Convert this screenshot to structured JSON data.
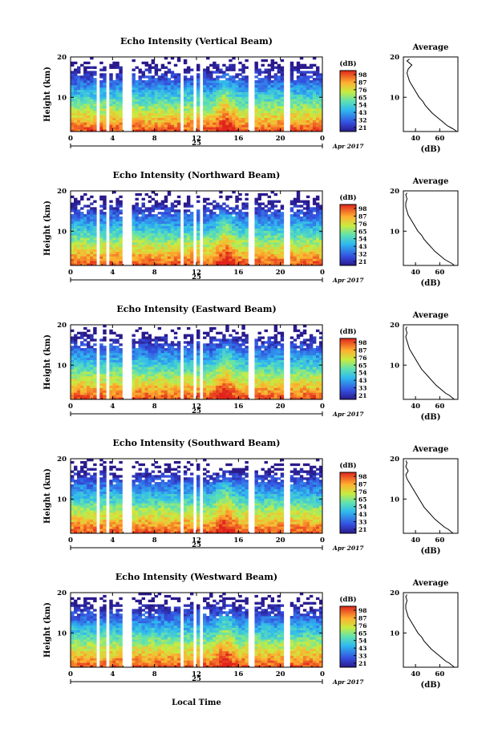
{
  "figure": {
    "xlabel": "Local Time",
    "average_title": "Average",
    "average_xlabel": "(dB)",
    "colorbar_unit": "(dB)",
    "y_label": "Height (km)",
    "date_label": "Apr 2017",
    "day_label": "25"
  },
  "chart_data": [
    {
      "type": "heatmap",
      "title": "Echo Intensity (Vertical Beam)",
      "xlabel": "",
      "ylabel": "Height (km)",
      "x_ticks": [
        "0",
        "4",
        "8",
        "12",
        "16",
        "20",
        "0"
      ],
      "y_ticks": [
        "20",
        "10"
      ],
      "xlim": [
        0,
        24
      ],
      "ylim": [
        1.5,
        20
      ],
      "colorbar": {
        "ticks": [
          "98",
          "87",
          "76",
          "65",
          "54",
          "43",
          "32",
          "21"
        ],
        "range": [
          21,
          98
        ]
      },
      "data_gaps_hours": [
        [
          2.6,
          2.9
        ],
        [
          3.3,
          3.6
        ],
        [
          4.9,
          5.9
        ],
        [
          10.5,
          10.9
        ],
        [
          11.6,
          12.0
        ],
        [
          12.4,
          12.7
        ],
        [
          17.0,
          17.5
        ],
        [
          20.2,
          20.5
        ],
        [
          20.7,
          21.0
        ]
      ],
      "enhanced_echo_hours": [
        13.5,
        16.0
      ],
      "average_profile": {
        "title": "Average",
        "xlabel": "(dB)",
        "x_ticks": [
          "40",
          "60"
        ],
        "y_ticks": [
          "20",
          "10"
        ],
        "xlim": [
          30,
          75
        ],
        "ylim": [
          1.5,
          20
        ],
        "height_km": [
          1.5,
          2,
          2.5,
          3,
          4,
          5,
          6,
          7,
          8,
          9,
          10,
          11,
          12,
          13,
          14,
          15,
          16,
          17,
          18,
          19,
          19.5
        ],
        "intensity_db": [
          74,
          72,
          69,
          66,
          62,
          58,
          54,
          51,
          48,
          46,
          43,
          41,
          39,
          37,
          35,
          34,
          33,
          34,
          37,
          33,
          35
        ]
      }
    },
    {
      "type": "heatmap",
      "title": "Echo Intensity (Northward Beam)",
      "xlabel": "",
      "ylabel": "Height (km)",
      "x_ticks": [
        "0",
        "4",
        "8",
        "12",
        "16",
        "20",
        "0"
      ],
      "y_ticks": [
        "20",
        "10"
      ],
      "xlim": [
        0,
        24
      ],
      "ylim": [
        1.5,
        20
      ],
      "colorbar": {
        "ticks": [
          "98",
          "87",
          "76",
          "65",
          "54",
          "43",
          "32",
          "21"
        ],
        "range": [
          21,
          98
        ]
      },
      "data_gaps_hours": [
        [
          2.6,
          2.9
        ],
        [
          3.3,
          3.6
        ],
        [
          4.9,
          5.9
        ],
        [
          10.5,
          10.9
        ],
        [
          11.6,
          12.0
        ],
        [
          12.4,
          12.7
        ],
        [
          17.0,
          17.5
        ],
        [
          20.2,
          20.5
        ],
        [
          20.7,
          21.0
        ]
      ],
      "enhanced_echo_hours": [
        13.5,
        16.0
      ],
      "average_profile": {
        "title": "Average",
        "xlabel": "(dB)",
        "x_ticks": [
          "40",
          "60"
        ],
        "y_ticks": [
          "20",
          "10"
        ],
        "xlim": [
          30,
          75
        ],
        "ylim": [
          1.5,
          20
        ],
        "height_km": [
          1.5,
          2,
          2.5,
          3,
          4,
          5,
          6,
          7,
          8,
          9,
          10,
          11,
          12,
          13,
          14,
          15,
          16,
          17,
          18,
          19,
          19.5
        ],
        "intensity_db": [
          72,
          70,
          67,
          64,
          60,
          56,
          53,
          50,
          47,
          45,
          42,
          40,
          38,
          36,
          34,
          33,
          32,
          32,
          33,
          32,
          33
        ]
      }
    },
    {
      "type": "heatmap",
      "title": "Echo Intensity (Eastward Beam)",
      "xlabel": "",
      "ylabel": "Height (km)",
      "x_ticks": [
        "0",
        "4",
        "8",
        "12",
        "16",
        "20",
        "0"
      ],
      "y_ticks": [
        "20",
        "10"
      ],
      "xlim": [
        0,
        24
      ],
      "ylim": [
        1.5,
        20
      ],
      "colorbar": {
        "ticks": [
          "98",
          "87",
          "76",
          "65",
          "54",
          "43",
          "33",
          "21"
        ],
        "range": [
          21,
          98
        ]
      },
      "data_gaps_hours": [
        [
          2.6,
          2.9
        ],
        [
          3.3,
          3.6
        ],
        [
          4.9,
          5.9
        ],
        [
          10.5,
          10.9
        ],
        [
          11.6,
          12.0
        ],
        [
          12.4,
          12.7
        ],
        [
          17.0,
          17.5
        ],
        [
          20.2,
          20.5
        ],
        [
          20.7,
          21.0
        ]
      ],
      "enhanced_echo_hours": [
        13.5,
        16.0
      ],
      "average_profile": {
        "title": "Average",
        "xlabel": "(dB)",
        "x_ticks": [
          "40",
          "60"
        ],
        "y_ticks": [
          "20",
          "10"
        ],
        "xlim": [
          30,
          75
        ],
        "ylim": [
          1.5,
          20
        ],
        "height_km": [
          1.5,
          2,
          2.5,
          3,
          4,
          5,
          6,
          7,
          8,
          9,
          10,
          11,
          12,
          13,
          14,
          15,
          16,
          17,
          18,
          19,
          19.5
        ],
        "intensity_db": [
          72,
          70,
          68,
          65,
          61,
          57,
          54,
          51,
          48,
          45,
          43,
          41,
          39,
          37,
          35,
          34,
          33,
          32,
          33,
          32,
          33
        ]
      }
    },
    {
      "type": "heatmap",
      "title": "Echo Intensity (Southward Beam)",
      "xlabel": "",
      "ylabel": "Height (km)",
      "x_ticks": [
        "0",
        "4",
        "8",
        "12",
        "16",
        "20",
        "0"
      ],
      "y_ticks": [
        "20",
        "10"
      ],
      "xlim": [
        0,
        24
      ],
      "ylim": [
        1.5,
        20
      ],
      "colorbar": {
        "ticks": [
          "98",
          "87",
          "76",
          "65",
          "54",
          "43",
          "33",
          "21"
        ],
        "range": [
          21,
          98
        ]
      },
      "data_gaps_hours": [
        [
          2.6,
          2.9
        ],
        [
          3.3,
          3.6
        ],
        [
          4.9,
          5.9
        ],
        [
          10.5,
          10.9
        ],
        [
          11.6,
          12.0
        ],
        [
          12.4,
          12.7
        ],
        [
          17.0,
          17.5
        ],
        [
          20.2,
          20.5
        ],
        [
          20.7,
          21.0
        ]
      ],
      "enhanced_echo_hours": [
        13.5,
        16.0
      ],
      "average_profile": {
        "title": "Average",
        "xlabel": "(dB)",
        "x_ticks": [
          "40",
          "60"
        ],
        "y_ticks": [
          "20",
          "10"
        ],
        "xlim": [
          30,
          75
        ],
        "ylim": [
          1.5,
          20
        ],
        "height_km": [
          1.5,
          2,
          2.5,
          3,
          4,
          5,
          6,
          7,
          8,
          9,
          10,
          11,
          12,
          13,
          14,
          15,
          16,
          17,
          18,
          19,
          19.5
        ],
        "intensity_db": [
          71,
          69,
          67,
          64,
          60,
          56,
          53,
          50,
          47,
          45,
          43,
          41,
          39,
          37,
          35,
          33,
          32,
          34,
          32,
          33,
          32
        ]
      }
    },
    {
      "type": "heatmap",
      "title": "Echo Intensity (Westward Beam)",
      "xlabel": "Local Time",
      "ylabel": "Height (km)",
      "x_ticks": [
        "0",
        "4",
        "8",
        "12",
        "16",
        "20",
        "0"
      ],
      "y_ticks": [
        "20",
        "10"
      ],
      "xlim": [
        0,
        24
      ],
      "ylim": [
        1.5,
        20
      ],
      "colorbar": {
        "ticks": [
          "98",
          "87",
          "76",
          "65",
          "54",
          "43",
          "33",
          "21"
        ],
        "range": [
          21,
          98
        ]
      },
      "data_gaps_hours": [
        [
          2.6,
          2.9
        ],
        [
          3.3,
          3.6
        ],
        [
          4.9,
          5.9
        ],
        [
          10.5,
          10.9
        ],
        [
          11.6,
          12.0
        ],
        [
          12.4,
          12.7
        ],
        [
          17.0,
          17.5
        ],
        [
          20.2,
          20.5
        ],
        [
          20.7,
          21.0
        ]
      ],
      "enhanced_echo_hours": [
        13.5,
        16.0
      ],
      "average_profile": {
        "title": "Average",
        "xlabel": "(dB)",
        "x_ticks": [
          "40",
          "60"
        ],
        "y_ticks": [
          "20",
          "10"
        ],
        "xlim": [
          30,
          75
        ],
        "ylim": [
          1.5,
          20
        ],
        "height_km": [
          1.5,
          2,
          2.5,
          3,
          4,
          5,
          6,
          7,
          8,
          9,
          10,
          11,
          12,
          13,
          14,
          15,
          16,
          17,
          18,
          19,
          19.5
        ],
        "intensity_db": [
          72,
          70,
          68,
          65,
          61,
          57,
          53,
          50,
          47,
          45,
          42,
          40,
          38,
          36,
          34,
          33,
          32,
          32,
          33,
          32,
          33
        ]
      }
    }
  ]
}
